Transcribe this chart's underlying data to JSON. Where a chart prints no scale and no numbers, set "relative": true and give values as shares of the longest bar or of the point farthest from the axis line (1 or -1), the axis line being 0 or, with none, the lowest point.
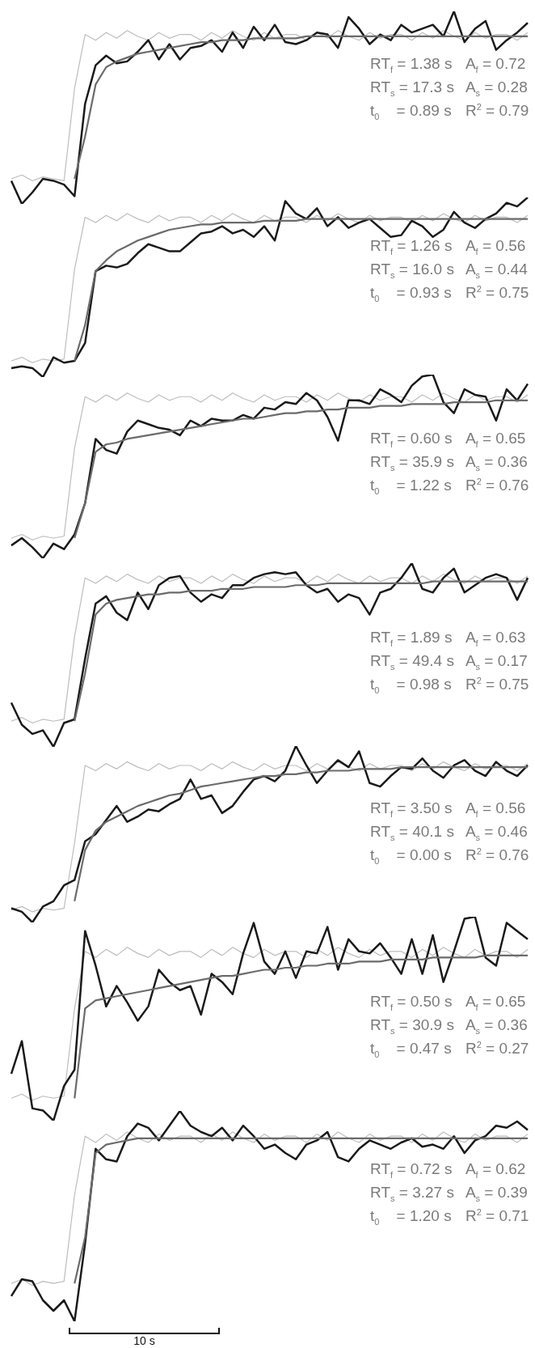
{
  "chart_data": [
    {
      "type": "line",
      "relative": true,
      "categories": [
        null,
        null,
        null,
        null,
        null,
        null,
        null,
        null,
        null,
        null,
        null,
        null,
        null,
        null,
        null,
        null,
        null,
        null,
        null,
        null,
        null,
        null,
        null,
        null,
        null,
        null,
        null,
        null,
        null,
        null,
        null,
        null,
        null,
        null,
        null,
        null,
        null,
        null,
        null,
        null,
        null,
        null,
        null,
        null,
        null,
        null,
        null,
        null,
        null,
        null
      ],
      "series": [
        {
          "color": "#bdbdbd",
          "values": [
            0.13,
            0.15,
            0.12,
            0.14,
            0.13,
            0.12,
            0.6,
            0.88,
            0.85,
            0.89,
            0.86,
            0.9,
            0.87,
            0.85,
            0.89,
            0.86,
            0.88,
            0.88,
            0.85,
            0.89,
            0.86,
            0.9,
            0.87,
            0.85,
            0.89,
            0.86,
            0.88,
            0.88,
            0.85,
            0.89,
            0.86,
            0.9,
            0.87,
            0.85,
            0.89,
            0.86,
            0.88,
            0.88,
            0.85,
            0.89,
            0.86,
            0.9,
            0.87,
            0.85,
            0.89,
            0.86,
            0.88,
            0.88,
            0.85,
            0.89
          ]
        },
        {
          "color": "#1a1a1a",
          "values": [
            0.12,
            0.0,
            0.06,
            0.13,
            0.12,
            0.1,
            0.04,
            0.52,
            0.72,
            0.77,
            0.73,
            0.74,
            0.79,
            0.85,
            0.75,
            0.83,
            0.75,
            0.81,
            0.82,
            0.85,
            0.79,
            0.89,
            0.81,
            0.92,
            0.85,
            0.93,
            0.84,
            0.83,
            0.85,
            0.89,
            0.88,
            0.81,
            0.97,
            0.91,
            0.83,
            0.88,
            0.85,
            0.93,
            0.89,
            0.91,
            0.93,
            0.87,
            1.0,
            0.84,
            0.91,
            0.95,
            0.8,
            0.85,
            0.89,
            0.94
          ]
        },
        {
          "color": "#6b6b6b",
          "values": [
            null,
            null,
            null,
            null,
            null,
            null,
            0.13,
            0.35,
            0.62,
            0.71,
            0.74,
            0.76,
            0.78,
            0.79,
            0.8,
            0.81,
            0.82,
            0.83,
            0.84,
            0.84,
            0.85,
            0.85,
            0.85,
            0.86,
            0.86,
            0.86,
            0.86,
            0.86,
            0.87,
            0.87,
            0.87,
            0.87,
            0.87,
            0.87,
            0.87,
            0.87,
            0.87,
            0.87,
            0.87,
            0.87,
            0.87,
            0.87,
            0.87,
            0.87,
            0.87,
            0.87,
            0.87,
            0.87,
            0.87,
            0.87
          ]
        }
      ],
      "annotations": [
        "RT$_{f}$ = 1.38 s",
        "A$_{f}$ = 0.72",
        "RT$_{s}$ = 17.3 s",
        "A$_{s}$ = 0.28",
        "t$_{0}$    = 0.89 s",
        "R$^{2}$ = 0.79"
      ]
    },
    {
      "type": "line",
      "relative": true,
      "categories": [
        null,
        null,
        null,
        null,
        null,
        null,
        null,
        null,
        null,
        null,
        null,
        null,
        null,
        null,
        null,
        null,
        null,
        null,
        null,
        null,
        null,
        null,
        null,
        null,
        null,
        null,
        null,
        null,
        null,
        null,
        null,
        null,
        null,
        null,
        null,
        null,
        null,
        null,
        null,
        null,
        null,
        null,
        null,
        null,
        null,
        null,
        null,
        null,
        null,
        null
      ],
      "series": [
        {
          "color": "#bdbdbd",
          "values": [
            0.09,
            0.11,
            0.08,
            0.1,
            0.09,
            0.1,
            0.6,
            0.89,
            0.86,
            0.9,
            0.87,
            0.91,
            0.88,
            0.86,
            0.9,
            0.87,
            0.89,
            0.89,
            0.86,
            0.9,
            0.87,
            0.91,
            0.88,
            0.86,
            0.9,
            0.87,
            0.89,
            0.89,
            0.86,
            0.9,
            0.87,
            0.91,
            0.88,
            0.86,
            0.9,
            0.87,
            0.89,
            0.89,
            0.86,
            0.9,
            0.87,
            0.91,
            0.88,
            0.86,
            0.9,
            0.87,
            0.89,
            0.89,
            0.86,
            0.9
          ]
        },
        {
          "color": "#1a1a1a",
          "values": [
            0.05,
            0.06,
            0.05,
            0.0,
            0.11,
            0.08,
            0.09,
            0.19,
            0.59,
            0.62,
            0.61,
            0.63,
            0.69,
            0.74,
            0.72,
            0.7,
            0.7,
            0.75,
            0.8,
            0.81,
            0.84,
            0.8,
            0.82,
            0.78,
            0.84,
            0.76,
            0.98,
            0.91,
            0.88,
            0.94,
            0.84,
            0.89,
            0.83,
            0.86,
            0.88,
            0.83,
            0.78,
            0.79,
            0.87,
            0.84,
            0.78,
            0.82,
            0.92,
            0.86,
            0.83,
            0.88,
            0.91,
            0.97,
            0.95,
            1.0
          ]
        },
        {
          "color": "#6b6b6b",
          "values": [
            null,
            null,
            null,
            null,
            null,
            null,
            0.09,
            0.29,
            0.59,
            0.65,
            0.7,
            0.73,
            0.76,
            0.78,
            0.8,
            0.82,
            0.83,
            0.84,
            0.85,
            0.85,
            0.86,
            0.86,
            0.86,
            0.86,
            0.87,
            0.87,
            0.87,
            0.87,
            0.88,
            0.88,
            0.88,
            0.88,
            0.88,
            0.88,
            0.88,
            0.88,
            0.88,
            0.88,
            0.88,
            0.88,
            0.88,
            0.88,
            0.88,
            0.88,
            0.88,
            0.88,
            0.88,
            0.88,
            0.88,
            0.88
          ]
        }
      ],
      "annotations": [
        "RT$_{f}$ = 1.26 s",
        "A$_{f}$ = 0.56",
        "RT$_{s}$ = 16.0 s",
        "A$_{s}$ = 0.44",
        "t$_{0}$    = 0.93 s",
        "R$^{2}$ = 0.75"
      ]
    },
    {
      "type": "line",
      "relative": true,
      "categories": [
        null,
        null,
        null,
        null,
        null,
        null,
        null,
        null,
        null,
        null,
        null,
        null,
        null,
        null,
        null,
        null,
        null,
        null,
        null,
        null,
        null,
        null,
        null,
        null,
        null,
        null,
        null,
        null,
        null,
        null,
        null,
        null,
        null,
        null,
        null,
        null,
        null,
        null,
        null,
        null,
        null,
        null,
        null,
        null,
        null,
        null,
        null,
        null,
        null,
        null
      ],
      "series": [
        {
          "color": "#bdbdbd",
          "values": [
            0.11,
            0.13,
            0.1,
            0.12,
            0.11,
            0.12,
            0.6,
            0.88,
            0.85,
            0.89,
            0.86,
            0.9,
            0.87,
            0.85,
            0.89,
            0.86,
            0.88,
            0.88,
            0.85,
            0.89,
            0.86,
            0.9,
            0.87,
            0.85,
            0.89,
            0.86,
            0.88,
            0.88,
            0.85,
            0.89,
            0.86,
            0.9,
            0.87,
            0.85,
            0.89,
            0.86,
            0.88,
            0.88,
            0.85,
            0.89,
            0.86,
            0.9,
            0.87,
            0.85,
            0.89,
            0.86,
            0.88,
            0.88,
            0.85,
            0.89
          ]
        },
        {
          "color": "#1a1a1a",
          "values": [
            0.07,
            0.11,
            0.06,
            0.0,
            0.08,
            0.05,
            0.13,
            0.3,
            0.65,
            0.59,
            0.57,
            0.69,
            0.75,
            0.73,
            0.71,
            0.7,
            0.67,
            0.75,
            0.72,
            0.76,
            0.75,
            0.75,
            0.78,
            0.76,
            0.82,
            0.81,
            0.85,
            0.84,
            0.9,
            0.86,
            0.77,
            0.64,
            0.86,
            0.86,
            0.84,
            0.92,
            0.89,
            0.85,
            0.94,
            0.99,
            1.0,
            0.85,
            0.79,
            0.92,
            0.89,
            0.88,
            0.75,
            0.92,
            0.86,
            0.95
          ]
        },
        {
          "color": "#6b6b6b",
          "values": [
            null,
            null,
            null,
            null,
            null,
            null,
            0.11,
            0.3,
            0.58,
            0.62,
            0.63,
            0.65,
            0.66,
            0.67,
            0.68,
            0.69,
            0.7,
            0.71,
            0.72,
            0.73,
            0.74,
            0.75,
            0.76,
            0.76,
            0.77,
            0.78,
            0.79,
            0.79,
            0.8,
            0.8,
            0.81,
            0.81,
            0.82,
            0.82,
            0.82,
            0.83,
            0.83,
            0.83,
            0.84,
            0.84,
            0.84,
            0.84,
            0.85,
            0.85,
            0.85,
            0.85,
            0.86,
            0.86,
            0.86,
            0.86
          ]
        }
      ],
      "annotations": [
        "RT$_{f}$ = 0.60 s",
        "A$_{f}$ = 0.65",
        "RT$_{s}$ = 35.9 s",
        "A$_{s}$ = 0.36",
        "t$_{0}$    = 1.22 s",
        "R$^{2}$ = 0.76"
      ]
    },
    {
      "type": "line",
      "relative": true,
      "categories": [
        null,
        null,
        null,
        null,
        null,
        null,
        null,
        null,
        null,
        null,
        null,
        null,
        null,
        null,
        null,
        null,
        null,
        null,
        null,
        null,
        null,
        null,
        null,
        null,
        null,
        null,
        null,
        null,
        null,
        null,
        null,
        null,
        null,
        null,
        null,
        null,
        null,
        null,
        null,
        null,
        null,
        null,
        null,
        null,
        null,
        null,
        null,
        null,
        null,
        null
      ],
      "series": [
        {
          "color": "#bdbdbd",
          "values": [
            0.14,
            0.16,
            0.13,
            0.15,
            0.14,
            0.15,
            0.6,
            0.92,
            0.89,
            0.93,
            0.9,
            0.94,
            0.91,
            0.89,
            0.93,
            0.9,
            0.92,
            0.92,
            0.89,
            0.93,
            0.9,
            0.94,
            0.91,
            0.89,
            0.93,
            0.9,
            0.92,
            0.92,
            0.89,
            0.93,
            0.9,
            0.94,
            0.91,
            0.89,
            0.93,
            0.9,
            0.92,
            0.92,
            0.89,
            0.93,
            0.9,
            0.94,
            0.91,
            0.89,
            0.93,
            0.9,
            0.92,
            0.92,
            0.89,
            0.93
          ]
        },
        {
          "color": "#1a1a1a",
          "values": [
            0.24,
            0.12,
            0.07,
            0.09,
            0.0,
            0.13,
            0.15,
            0.48,
            0.78,
            0.82,
            0.73,
            0.69,
            0.84,
            0.75,
            0.88,
            0.92,
            0.93,
            0.84,
            0.79,
            0.83,
            0.81,
            0.88,
            0.88,
            0.92,
            0.94,
            0.95,
            0.94,
            0.95,
            0.88,
            0.84,
            0.86,
            0.79,
            0.83,
            0.81,
            0.72,
            0.84,
            0.86,
            0.92,
            1.0,
            0.86,
            0.84,
            0.92,
            0.97,
            0.84,
            0.88,
            0.92,
            0.94,
            0.92,
            0.8,
            0.92
          ]
        },
        {
          "color": "#6b6b6b",
          "values": [
            null,
            null,
            null,
            null,
            null,
            null,
            0.14,
            0.4,
            0.72,
            0.78,
            0.8,
            0.81,
            0.82,
            0.83,
            0.83,
            0.84,
            0.84,
            0.85,
            0.85,
            0.85,
            0.86,
            0.86,
            0.86,
            0.87,
            0.87,
            0.87,
            0.87,
            0.88,
            0.88,
            0.88,
            0.89,
            0.89,
            0.89,
            0.89,
            0.89,
            0.89,
            0.89,
            0.89,
            0.89,
            0.89,
            0.9,
            0.9,
            0.9,
            0.9,
            0.9,
            0.9,
            0.9,
            0.9,
            0.9,
            0.9
          ]
        }
      ],
      "annotations": [
        "RT$_{f}$ = 1.89 s",
        "A$_{f}$ = 0.63",
        "RT$_{s}$ = 49.4 s",
        "A$_{s}$ = 0.17",
        "t$_{0}$    = 0.98 s",
        "R$^{2}$ = 0.75"
      ]
    },
    {
      "type": "line",
      "relative": true,
      "categories": [
        null,
        null,
        null,
        null,
        null,
        null,
        null,
        null,
        null,
        null,
        null,
        null,
        null,
        null,
        null,
        null,
        null,
        null,
        null,
        null,
        null,
        null,
        null,
        null,
        null,
        null,
        null,
        null,
        null,
        null,
        null,
        null,
        null,
        null,
        null,
        null,
        null,
        null,
        null,
        null,
        null,
        null,
        null,
        null,
        null,
        null,
        null,
        null,
        null,
        null
      ],
      "series": [
        {
          "color": "#bdbdbd",
          "values": [
            0.07,
            0.09,
            0.06,
            0.08,
            0.07,
            0.08,
            0.45,
            0.89,
            0.86,
            0.9,
            0.87,
            0.91,
            0.88,
            0.86,
            0.9,
            0.87,
            0.89,
            0.89,
            0.86,
            0.9,
            0.87,
            0.91,
            0.88,
            0.86,
            0.9,
            0.87,
            0.89,
            0.89,
            0.86,
            0.9,
            0.87,
            0.91,
            0.88,
            0.86,
            0.9,
            0.87,
            0.89,
            0.89,
            0.86,
            0.9,
            0.87,
            0.91,
            0.88,
            0.86,
            0.9,
            0.87,
            0.89,
            0.89,
            0.86,
            0.9
          ]
        },
        {
          "color": "#1a1a1a",
          "values": [
            0.08,
            0.06,
            0.0,
            0.09,
            0.12,
            0.21,
            0.24,
            0.46,
            0.5,
            0.58,
            0.66,
            0.57,
            0.6,
            0.64,
            0.63,
            0.67,
            0.7,
            0.81,
            0.7,
            0.72,
            0.62,
            0.66,
            0.74,
            0.81,
            0.83,
            0.8,
            0.86,
            1.0,
            0.89,
            0.79,
            0.86,
            0.92,
            0.88,
            0.97,
            0.79,
            0.77,
            0.83,
            0.88,
            0.87,
            0.93,
            0.86,
            0.82,
            0.89,
            0.92,
            0.86,
            0.83,
            0.91,
            0.86,
            0.83,
            0.89
          ]
        },
        {
          "color": "#6b6b6b",
          "values": [
            null,
            null,
            null,
            null,
            null,
            null,
            0.12,
            0.41,
            0.52,
            0.57,
            0.6,
            0.63,
            0.66,
            0.68,
            0.7,
            0.72,
            0.73,
            0.75,
            0.77,
            0.78,
            0.79,
            0.8,
            0.81,
            0.82,
            0.83,
            0.83,
            0.84,
            0.84,
            0.85,
            0.85,
            0.86,
            0.86,
            0.86,
            0.87,
            0.87,
            0.87,
            0.87,
            0.88,
            0.88,
            0.88,
            0.88,
            0.88,
            0.88,
            0.88,
            0.88,
            0.88,
            0.88,
            0.88,
            0.88,
            0.88
          ]
        }
      ],
      "annotations": [
        "RT$_{f}$ = 3.50 s",
        "A$_{f}$ = 0.56",
        "RT$_{s}$ = 40.1 s",
        "A$_{s}$ = 0.46",
        "t$_{0}$    = 0.00 s",
        "R$^{2}$ = 0.76"
      ]
    },
    {
      "type": "line",
      "relative": true,
      "categories": [
        null,
        null,
        null,
        null,
        null,
        null,
        null,
        null,
        null,
        null,
        null,
        null,
        null,
        null,
        null,
        null,
        null,
        null,
        null,
        null,
        null,
        null,
        null,
        null,
        null,
        null,
        null,
        null,
        null,
        null,
        null,
        null,
        null,
        null,
        null,
        null,
        null,
        null,
        null,
        null,
        null,
        null,
        null,
        null,
        null,
        null,
        null,
        null,
        null,
        null
      ],
      "series": [
        {
          "color": "#bdbdbd",
          "values": [
            0.11,
            0.13,
            0.1,
            0.12,
            0.11,
            0.12,
            0.55,
            0.83,
            0.8,
            0.84,
            0.81,
            0.85,
            0.82,
            0.8,
            0.84,
            0.81,
            0.83,
            0.83,
            0.8,
            0.84,
            0.81,
            0.85,
            0.82,
            0.8,
            0.84,
            0.81,
            0.83,
            0.83,
            0.8,
            0.84,
            0.81,
            0.85,
            0.82,
            0.8,
            0.84,
            0.81,
            0.83,
            0.83,
            0.8,
            0.84,
            0.81,
            0.85,
            0.82,
            0.8,
            0.84,
            0.81,
            0.83,
            0.83,
            0.8,
            0.84
          ]
        },
        {
          "color": "#1a1a1a",
          "values": [
            0.23,
            0.39,
            0.06,
            0.05,
            0.0,
            0.17,
            0.25,
            0.93,
            0.76,
            0.56,
            0.66,
            0.58,
            0.49,
            0.56,
            0.74,
            0.68,
            0.64,
            0.66,
            0.52,
            0.72,
            0.68,
            0.62,
            0.82,
            0.97,
            0.78,
            0.72,
            0.83,
            0.7,
            0.83,
            0.82,
            0.95,
            0.74,
            0.89,
            0.83,
            0.82,
            0.87,
            0.8,
            0.72,
            0.89,
            0.72,
            0.91,
            0.68,
            0.83,
            0.99,
            1.0,
            0.8,
            0.76,
            0.97,
            0.93,
            0.89
          ]
        },
        {
          "color": "#6b6b6b",
          "values": [
            null,
            null,
            null,
            null,
            null,
            null,
            0.11,
            0.55,
            0.59,
            0.6,
            0.61,
            0.62,
            0.63,
            0.64,
            0.65,
            0.66,
            0.67,
            0.68,
            0.69,
            0.7,
            0.71,
            0.71,
            0.72,
            0.73,
            0.74,
            0.74,
            0.75,
            0.75,
            0.76,
            0.76,
            0.77,
            0.77,
            0.77,
            0.78,
            0.78,
            0.78,
            0.79,
            0.79,
            0.79,
            0.79,
            0.8,
            0.8,
            0.8,
            0.8,
            0.8,
            0.81,
            0.81,
            0.81,
            0.81,
            0.81
          ]
        }
      ],
      "annotations": [
        "RT$_{f}$ = 0.50 s",
        "A$_{f}$ = 0.65",
        "RT$_{s}$ = 30.9 s",
        "A$_{s}$ = 0.36",
        "t$_{0}$    = 0.47 s",
        "R$^{2}$ = 0.27"
      ]
    },
    {
      "type": "line",
      "relative": true,
      "categories": [
        null,
        null,
        null,
        null,
        null,
        null,
        null,
        null,
        null,
        null,
        null,
        null,
        null,
        null,
        null,
        null,
        null,
        null,
        null,
        null,
        null,
        null,
        null,
        null,
        null,
        null,
        null,
        null,
        null,
        null,
        null,
        null,
        null,
        null,
        null,
        null,
        null,
        null,
        null,
        null,
        null,
        null,
        null,
        null,
        null,
        null,
        null,
        null,
        null,
        null
      ],
      "series": [
        {
          "color": "#bdbdbd",
          "values": [
            0.18,
            0.2,
            0.17,
            0.19,
            0.18,
            0.19,
            0.6,
            0.88,
            0.85,
            0.89,
            0.86,
            0.9,
            0.87,
            0.85,
            0.89,
            0.86,
            0.88,
            0.88,
            0.85,
            0.89,
            0.86,
            0.9,
            0.87,
            0.85,
            0.89,
            0.86,
            0.88,
            0.88,
            0.85,
            0.89,
            0.86,
            0.9,
            0.87,
            0.85,
            0.89,
            0.86,
            0.88,
            0.88,
            0.85,
            0.89,
            0.86,
            0.9,
            0.87,
            0.85,
            0.89,
            0.86,
            0.88,
            0.88,
            0.85,
            0.89
          ]
        },
        {
          "color": "#1a1a1a",
          "values": [
            0.12,
            0.2,
            0.19,
            0.1,
            0.05,
            0.1,
            0.0,
            0.37,
            0.82,
            0.77,
            0.76,
            0.88,
            0.94,
            0.92,
            0.86,
            0.93,
            1.0,
            0.93,
            0.9,
            0.88,
            0.92,
            0.86,
            0.93,
            0.88,
            0.82,
            0.84,
            0.8,
            0.77,
            0.84,
            0.86,
            0.9,
            0.78,
            0.76,
            0.82,
            0.86,
            0.84,
            0.82,
            0.85,
            0.87,
            0.83,
            0.84,
            0.82,
            0.88,
            0.8,
            0.86,
            0.88,
            0.93,
            0.92,
            0.95,
            0.91
          ]
        },
        {
          "color": "#6b6b6b",
          "values": [
            null,
            null,
            null,
            null,
            null,
            null,
            0.18,
            0.4,
            0.8,
            0.84,
            0.85,
            0.86,
            0.87,
            0.87,
            0.87,
            0.87,
            0.87,
            0.87,
            0.87,
            0.87,
            0.87,
            0.87,
            0.87,
            0.87,
            0.87,
            0.87,
            0.87,
            0.87,
            0.87,
            0.87,
            0.87,
            0.87,
            0.87,
            0.87,
            0.87,
            0.87,
            0.87,
            0.87,
            0.87,
            0.87,
            0.87,
            0.87,
            0.87,
            0.87,
            0.87,
            0.87,
            0.87,
            0.87,
            0.87,
            0.87
          ]
        }
      ],
      "annotations": [
        "RT$_{f}$ = 0.72 s",
        "A$_{f}$ = 0.62",
        "RT$_{s}$ = 3.27 s",
        "A$_{s}$ = 0.39",
        "t$_{0}$    = 1.20 s",
        "R$^{2}$ = 0.71",
        "10 s"
      ]
    }
  ]
}
